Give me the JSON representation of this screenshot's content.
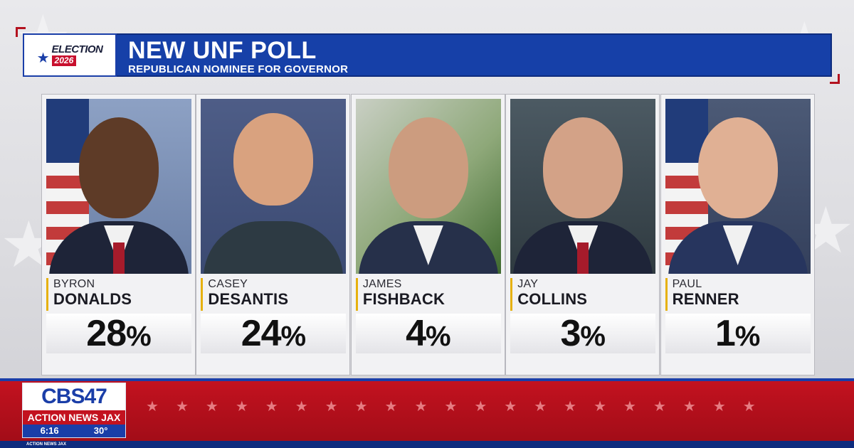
{
  "header": {
    "logo_election": "ELECTION",
    "logo_year": "2026",
    "title": "NEW UNF POLL",
    "subtitle": "REPUBLICAN NOMINEE FOR GOVERNOR"
  },
  "candidates": [
    {
      "first": "BYRON",
      "last": "DONALDS",
      "percent": "28",
      "sign": "%"
    },
    {
      "first": "CASEY",
      "last": "DESANTIS",
      "percent": "24",
      "sign": "%"
    },
    {
      "first": "JAMES",
      "last": "FISHBACK",
      "percent": "4",
      "sign": "%"
    },
    {
      "first": "JAY",
      "last": "COLLINS",
      "percent": "3",
      "sign": "%"
    },
    {
      "first": "PAUL",
      "last": "RENNER",
      "percent": "1",
      "sign": "%"
    }
  ],
  "station": {
    "call": "CBS47",
    "brand": "ACTION NEWS JAX",
    "time": "6:16",
    "temperature": "30°",
    "ticker_label": "ACTION NEWS JAX"
  },
  "colors": {
    "brand_blue": "#1640a8",
    "brand_red": "#c3121f",
    "accent_gold": "#e6b10e"
  }
}
